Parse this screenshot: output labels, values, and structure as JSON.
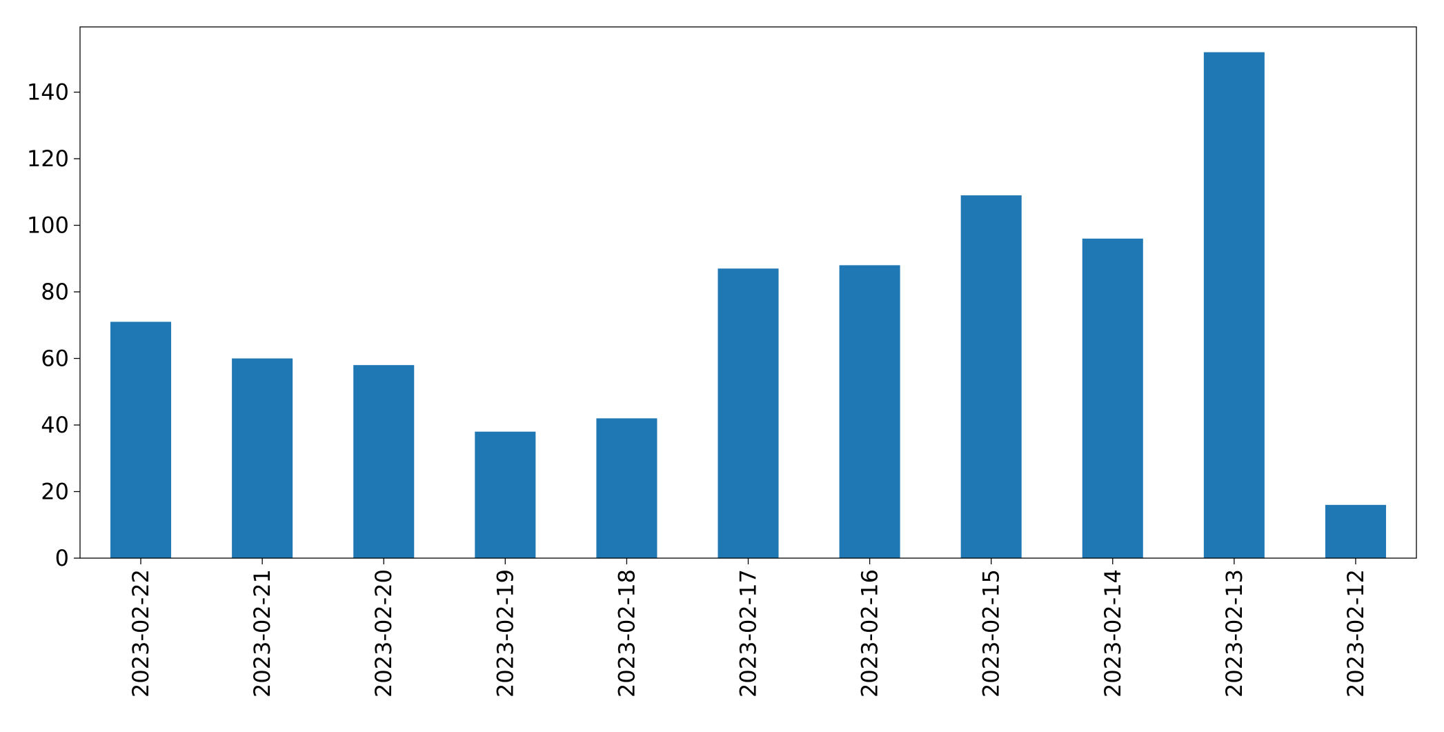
{
  "chart_data": {
    "type": "bar",
    "categories": [
      "2023-02-22",
      "2023-02-21",
      "2023-02-20",
      "2023-02-19",
      "2023-02-18",
      "2023-02-17",
      "2023-02-16",
      "2023-02-15",
      "2023-02-14",
      "2023-02-13",
      "2023-02-12"
    ],
    "values": [
      71,
      60,
      58,
      38,
      42,
      87,
      88,
      109,
      96,
      152,
      16
    ],
    "color": "#1f77b4",
    "ylim": [
      0,
      159.6
    ],
    "yticks": [
      0,
      20,
      40,
      60,
      80,
      100,
      120,
      140
    ],
    "grid": false
  }
}
